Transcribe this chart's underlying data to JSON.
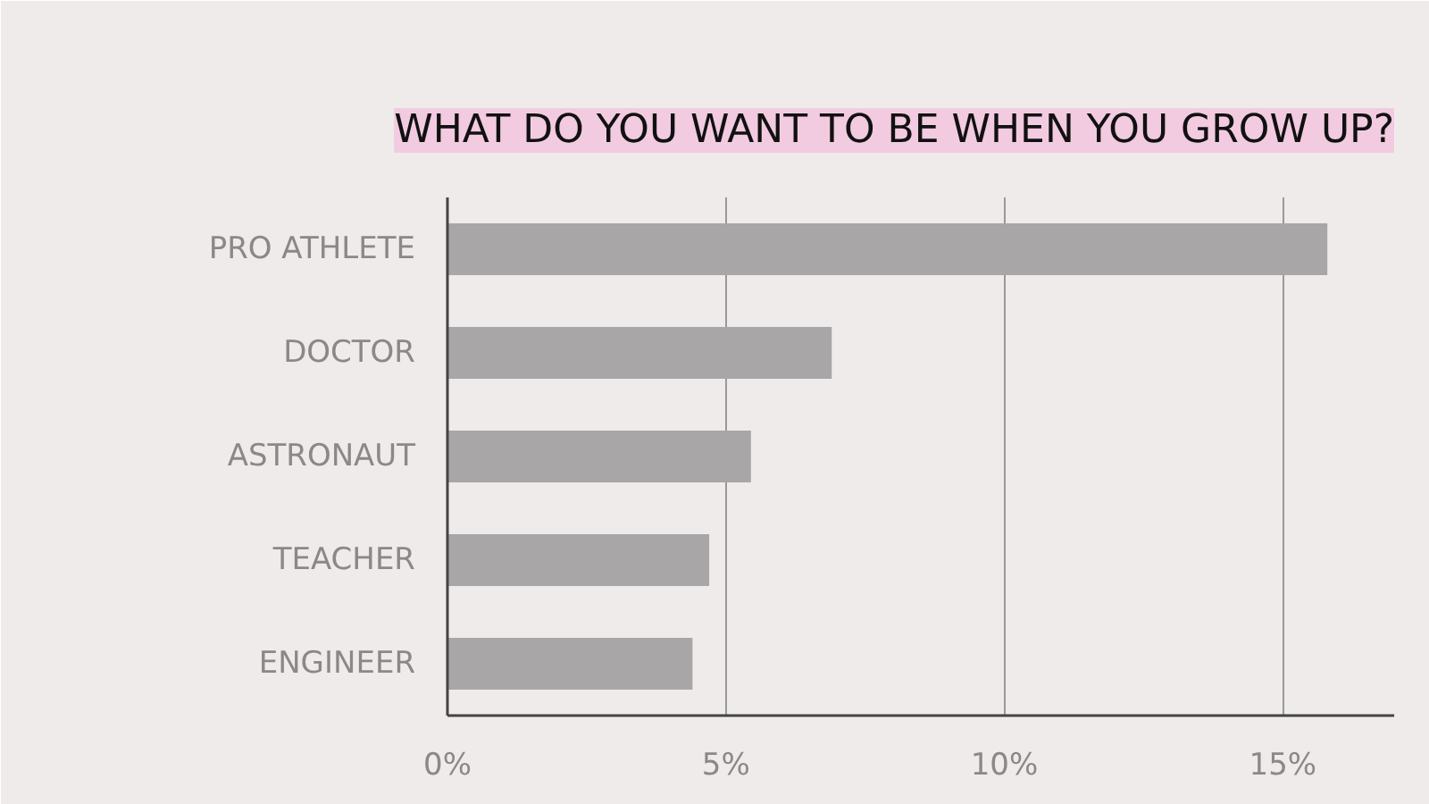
{
  "chart_data": {
    "type": "bar",
    "orientation": "horizontal",
    "title": "WHAT DO YOU WANT TO BE WHEN YOU GROW UP?",
    "categories": [
      "PRO ATHLETE",
      "DOCTOR",
      "ASTRONAUT",
      "TEACHER",
      "ENGINEER"
    ],
    "values": [
      15.8,
      6.9,
      5.45,
      4.7,
      4.4
    ],
    "color": "#a8a6a6",
    "xlim": [
      0,
      17
    ],
    "xticks": [
      {
        "value": 0,
        "label": "0%"
      },
      {
        "value": 5,
        "label": "5%"
      },
      {
        "value": 10,
        "label": "10%"
      },
      {
        "value": 15,
        "label": "15%"
      }
    ],
    "grid": "x"
  }
}
